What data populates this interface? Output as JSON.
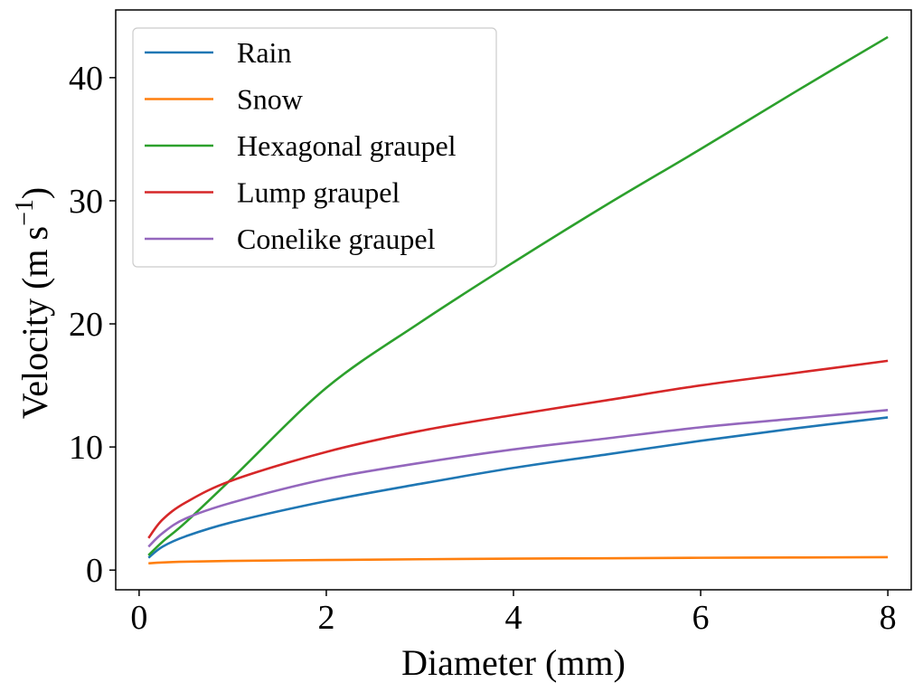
{
  "chart_data": {
    "type": "line",
    "title": "",
    "xlabel": "Diameter (mm)",
    "ylabel": {
      "text": "Velocity (m s",
      "sup": "−1",
      "close": ")"
    },
    "xlim": [
      -0.25,
      8.25
    ],
    "ylim": [
      -1.6,
      45.5
    ],
    "xticks": [
      0,
      2,
      4,
      6,
      8
    ],
    "yticks": [
      0,
      10,
      20,
      30,
      40
    ],
    "xtick_labels": [
      "0",
      "2",
      "4",
      "6",
      "8"
    ],
    "ytick_labels": [
      "0",
      "10",
      "20",
      "30",
      "40"
    ],
    "grid": false,
    "legend_position": "top-left",
    "series": [
      {
        "name": "Rain",
        "color": "#1f77b4",
        "x": [
          0.1,
          0.25,
          0.5,
          1,
          2,
          3,
          4,
          5,
          6,
          7,
          8
        ],
        "values": [
          1.0,
          1.9,
          2.75,
          3.9,
          5.6,
          7.0,
          8.3,
          9.4,
          10.5,
          11.5,
          12.4
        ]
      },
      {
        "name": "Snow",
        "color": "#ff7f0e",
        "x": [
          0.1,
          0.25,
          0.5,
          1,
          2,
          3,
          4,
          5,
          6,
          7,
          8
        ],
        "values": [
          0.55,
          0.62,
          0.68,
          0.75,
          0.82,
          0.88,
          0.93,
          0.96,
          1.0,
          1.02,
          1.05
        ]
      },
      {
        "name": "Hexagonal graupel",
        "color": "#2ca02c",
        "x": [
          0.1,
          0.25,
          0.5,
          1,
          2,
          3,
          4,
          5,
          6,
          7,
          8
        ],
        "values": [
          1.2,
          2.3,
          3.9,
          7.5,
          14.8,
          20.1,
          25.0,
          29.7,
          34.2,
          38.8,
          43.3
        ]
      },
      {
        "name": "Lump graupel",
        "color": "#d62728",
        "x": [
          0.1,
          0.25,
          0.5,
          1,
          2,
          3,
          4,
          5,
          6,
          7,
          8
        ],
        "values": [
          2.6,
          4.1,
          5.5,
          7.3,
          9.6,
          11.3,
          12.6,
          13.8,
          15.0,
          16.0,
          17.0
        ]
      },
      {
        "name": "Conelike graupel",
        "color": "#9467bd",
        "x": [
          0.1,
          0.25,
          0.5,
          1,
          2,
          3,
          4,
          5,
          6,
          7,
          8
        ],
        "values": [
          1.9,
          3.0,
          4.2,
          5.5,
          7.4,
          8.7,
          9.8,
          10.7,
          11.6,
          12.3,
          13.0
        ]
      }
    ]
  }
}
